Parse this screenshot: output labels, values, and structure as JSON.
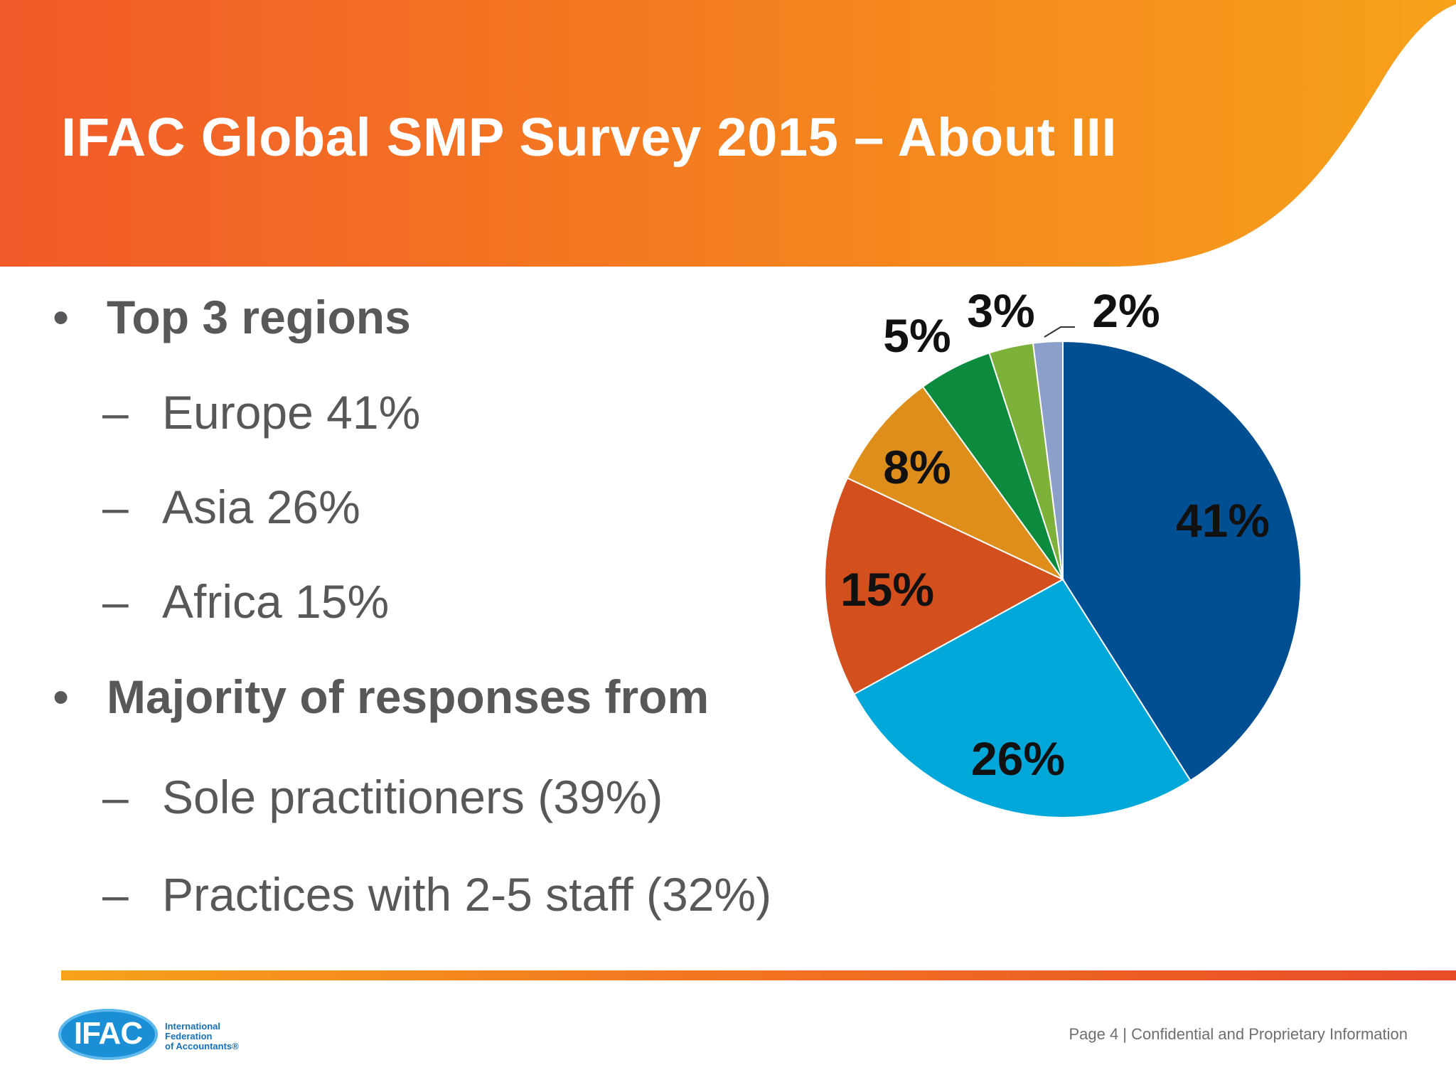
{
  "slide": {
    "title": "IFAC Global SMP Survey 2015 – About III"
  },
  "bullets": [
    {
      "marker": "•",
      "text": "Top 3 regions",
      "level": 1
    },
    {
      "marker": "–",
      "text": "Europe 41%",
      "level": 2
    },
    {
      "marker": "–",
      "text": "Asia 26%",
      "level": 2
    },
    {
      "marker": "–",
      "text": "Africa 15%",
      "level": 2
    },
    {
      "marker": "•",
      "text": "Majority of responses from",
      "level": 1
    },
    {
      "marker": "–",
      "text": "Sole practitioners (39%)",
      "level": 2
    },
    {
      "marker": "–",
      "text": "Practices with 2-5 staff (32%)",
      "level": 2
    }
  ],
  "chart_data": {
    "type": "pie",
    "title": "",
    "legend": "none",
    "slices": [
      {
        "value": 41,
        "label": "41%",
        "color": "#004f93"
      },
      {
        "value": 26,
        "label": "26%",
        "color": "#00a7d9"
      },
      {
        "value": 15,
        "label": "15%",
        "color": "#d34f1e"
      },
      {
        "value": 8,
        "label": "8%",
        "color": "#de8f1b"
      },
      {
        "value": 5,
        "label": "5%",
        "color": "#0c8a3e"
      },
      {
        "value": 3,
        "label": "3%",
        "color": "#7db13a"
      },
      {
        "value": 2,
        "label": "2%",
        "color": "#8c9fcb"
      }
    ]
  },
  "footer": {
    "page_info": "Page 4  |  Confidential and Proprietary Information",
    "logo_text": "IFAC",
    "org_name_lines": [
      "International",
      "Federation",
      "of Accountants®"
    ]
  }
}
